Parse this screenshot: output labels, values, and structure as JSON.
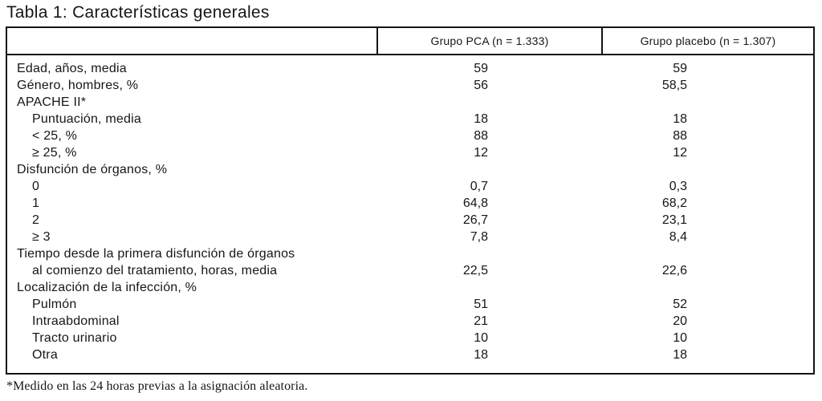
{
  "title": "Tabla 1: Características generales",
  "table": {
    "header": {
      "label_col": "",
      "col_pca": "Grupo PCA (n = 1.333)",
      "col_placebo": "Grupo placebo (n = 1.307)"
    },
    "rows": [
      {
        "label": "Edad, años, media",
        "pca": "59",
        "placebo": "59"
      },
      {
        "label": "Género, hombres, %",
        "pca": "56",
        "placebo": "58,5"
      },
      {
        "label": "APACHE II*",
        "pca": "",
        "placebo": ""
      },
      {
        "label": "Puntuación, media",
        "pca": "18",
        "placebo": "18"
      },
      {
        "label": "< 25, %",
        "pca": "88",
        "placebo": "88"
      },
      {
        "label": "≥ 25, %",
        "pca": "12",
        "placebo": "12"
      },
      {
        "label": "Disfunción de órganos, %",
        "pca": "",
        "placebo": ""
      },
      {
        "label": "0",
        "pca": "0,7",
        "placebo": "0,3"
      },
      {
        "label": "1",
        "pca": "64,8",
        "placebo": "68,2"
      },
      {
        "label": "2",
        "pca": "26,7",
        "placebo": "23,1"
      },
      {
        "label": "≥ 3",
        "pca": "7,8",
        "placebo": "8,4"
      },
      {
        "label": "Tiempo desde la primera disfunción de órganos",
        "pca": "",
        "placebo": ""
      },
      {
        "label": "al comienzo del tratamiento, horas, media",
        "pca": "22,5",
        "placebo": "22,6"
      },
      {
        "label": "Localización de la infección, %",
        "pca": "",
        "placebo": ""
      },
      {
        "label": "Pulmón",
        "pca": "51",
        "placebo": "52"
      },
      {
        "label": "Intraabdominal",
        "pca": "21",
        "placebo": "20"
      },
      {
        "label": "Tracto urinario",
        "pca": "10",
        "placebo": "10"
      },
      {
        "label": "Otra",
        "pca": "18",
        "placebo": "18"
      }
    ]
  },
  "footnote": "*Medido en las 24 horas previas a la asignación aleatoria."
}
